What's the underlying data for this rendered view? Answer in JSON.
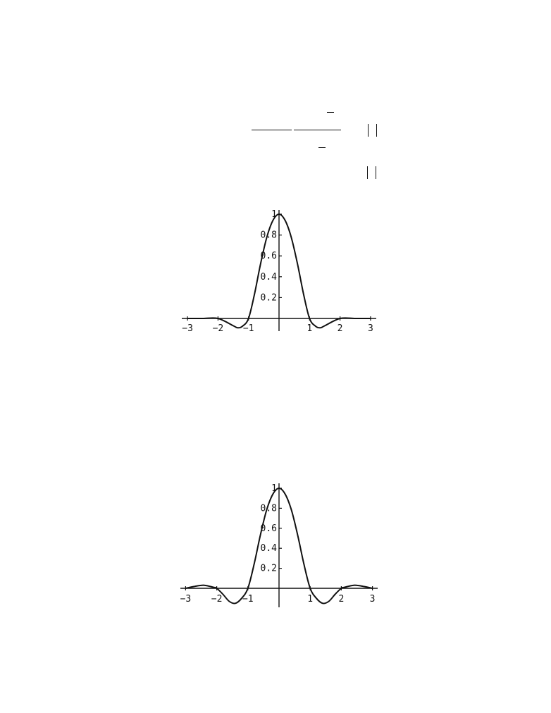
{
  "chart_data": [
    {
      "type": "line",
      "title": "",
      "xlabel": "",
      "ylabel": "",
      "xlim": [
        -3,
        3
      ],
      "ylim": [
        0,
        1
      ],
      "x_ticks": [
        "-3",
        "-2",
        "-1",
        "1",
        "2",
        "3"
      ],
      "y_ticks": [
        "0.2",
        "0.4",
        "0.6",
        "0.8",
        "1"
      ],
      "grid": false,
      "series": [
        {
          "x": [
            -3,
            -2.5,
            -2,
            -1.5,
            -1.35,
            -1.2,
            -1,
            -0.8,
            -0.6,
            -0.4,
            -0.2,
            0,
            0.2,
            0.4,
            0.6,
            0.8,
            1,
            1.2,
            1.35,
            1.5,
            2,
            2.5,
            3
          ],
          "y": [
            0,
            0,
            0,
            -0.07,
            -0.09,
            -0.075,
            0,
            0.24,
            0.53,
            0.78,
            0.94,
            1,
            0.94,
            0.78,
            0.53,
            0.24,
            0,
            -0.075,
            -0.09,
            -0.07,
            0,
            0,
            0
          ]
        }
      ]
    },
    {
      "type": "line",
      "title": "",
      "xlabel": "",
      "ylabel": "",
      "xlim": [
        -3,
        3
      ],
      "ylim": [
        0,
        1
      ],
      "x_ticks": [
        "-3",
        "-2",
        "-1",
        "1",
        "2",
        "3"
      ],
      "y_ticks": [
        "0.2",
        "0.4",
        "0.6",
        "0.8",
        "1"
      ],
      "grid": false,
      "series": [
        {
          "x": [
            -3,
            -2.7,
            -2.4,
            -2.1,
            -2,
            -1.8,
            -1.6,
            -1.4,
            -1.2,
            -1,
            -0.8,
            -0.6,
            -0.4,
            -0.2,
            0,
            0.2,
            0.4,
            0.6,
            0.8,
            1,
            1.2,
            1.4,
            1.6,
            1.8,
            2,
            2.1,
            2.4,
            2.7,
            3
          ],
          "y": [
            0,
            0.02,
            0.03,
            0.01,
            0,
            -0.06,
            -0.13,
            -0.15,
            -0.1,
            0,
            0.24,
            0.53,
            0.78,
            0.94,
            1,
            0.94,
            0.78,
            0.53,
            0.24,
            0,
            -0.1,
            -0.15,
            -0.13,
            -0.06,
            0,
            0.01,
            0.03,
            0.02,
            0
          ]
        }
      ]
    }
  ]
}
